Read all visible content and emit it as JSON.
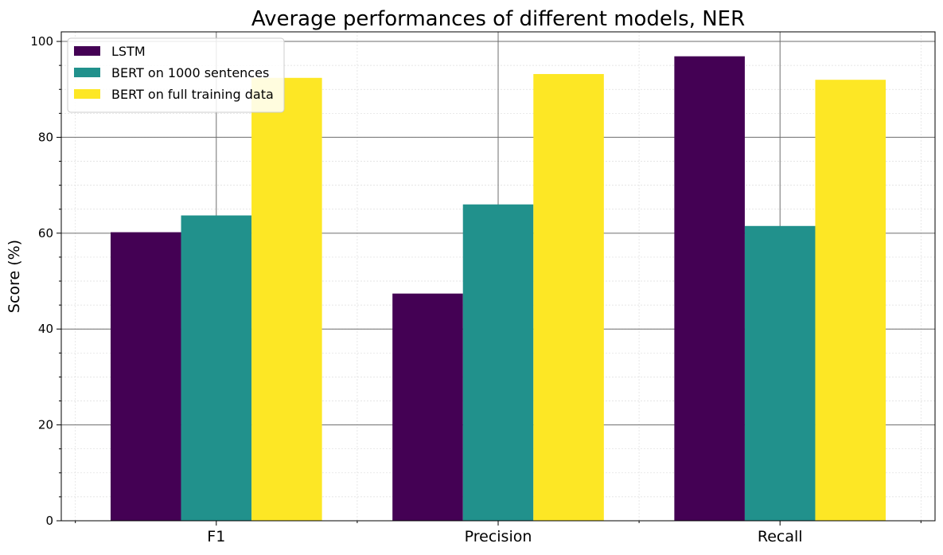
{
  "chart_data": {
    "type": "bar",
    "title": "Average performances of different models, NER",
    "xlabel": "",
    "ylabel": "Score (%)",
    "categories": [
      "F1",
      "Precision",
      "Recall"
    ],
    "series": [
      {
        "name": "LSTM",
        "color": "#440154",
        "values": [
          60.2,
          47.4,
          96.9
        ]
      },
      {
        "name": "BERT on 1000 sentences",
        "color": "#21918c",
        "values": [
          63.7,
          66.0,
          61.5
        ]
      },
      {
        "name": "BERT on full training data",
        "color": "#fde725",
        "values": [
          92.4,
          93.2,
          92.0
        ]
      }
    ],
    "ylim": [
      0,
      102
    ],
    "yticks": [
      0,
      20,
      40,
      60,
      80,
      100
    ],
    "grid": true,
    "legend_position": "top-left"
  }
}
